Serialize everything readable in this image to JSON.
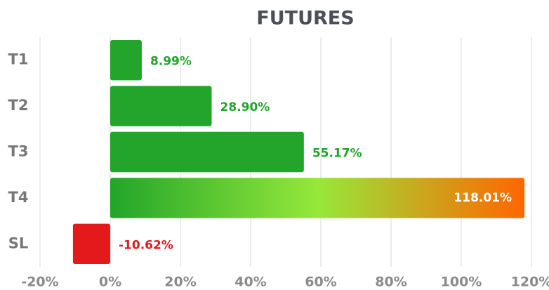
{
  "chart_data": {
    "type": "barh",
    "title": "FUTURES",
    "categories": [
      "T1",
      "T2",
      "T3",
      "T4",
      "SL"
    ],
    "values": [
      8.99,
      28.9,
      55.17,
      118.01,
      -10.62
    ],
    "value_labels": [
      "8.99%",
      "28.90%",
      "55.17%",
      "118.01%",
      "-10.62%"
    ],
    "colors": [
      "#22a52a",
      "#22a52a",
      "#22a52a",
      [
        "#22a52a",
        "#96e83a",
        "#ff6600"
      ],
      "#e3191b"
    ],
    "xlim": [
      -20,
      120
    ],
    "xticks": [
      {
        "value": -20,
        "label": "-20%"
      },
      {
        "value": 0,
        "label": "0%"
      },
      {
        "value": 20,
        "label": "20%"
      },
      {
        "value": 40,
        "label": "40%"
      },
      {
        "value": 60,
        "label": "60%"
      },
      {
        "value": 80,
        "label": "80%"
      },
      {
        "value": 100,
        "label": "100%"
      },
      {
        "value": 120,
        "label": "120%"
      }
    ],
    "grid": true
  }
}
